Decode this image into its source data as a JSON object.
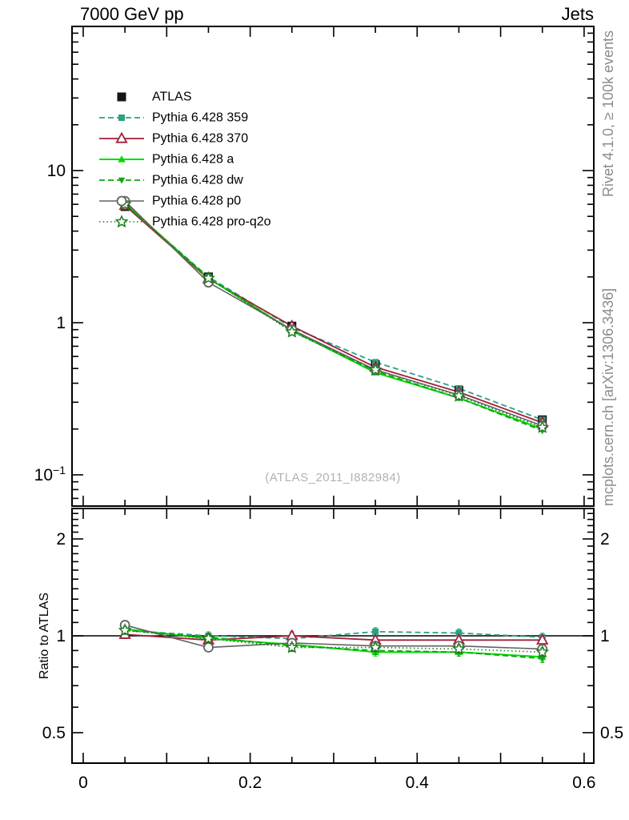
{
  "title": {
    "left": "7000 GeV pp",
    "right": "Jets"
  },
  "side_notes": {
    "top_rotated": "Rivet 4.1.0, ≥ 100k events",
    "bottom_rotated": "mcplots.cern.ch [arXiv:1306.3436]"
  },
  "watermark": "(ATLAS_2011_I882984)",
  "ratio_axis_label": "Ratio to ATLAS",
  "colors": {
    "frame": "#000000",
    "side_note": "#8c8c8c",
    "watermark": "#b2b2b2",
    "background": "#ffffff"
  },
  "chart_data": {
    "type": "line",
    "title": "7000 GeV pp — Jets",
    "xlabel": "",
    "ylabel": "",
    "ratio_ylabel": "Ratio to ATLAS",
    "x": [
      0.05,
      0.15,
      0.25,
      0.35,
      0.45,
      0.55
    ],
    "xlim": [
      -0.0134,
      0.6116
    ],
    "x_ticks": [
      {
        "v": 0,
        "t": "0"
      },
      {
        "v": 0.2,
        "t": "0.2"
      },
      {
        "v": 0.4,
        "t": "0.4"
      },
      {
        "v": 0.6,
        "t": "0.6"
      }
    ],
    "x_minor_step": 0.05,
    "grid": false,
    "legend_position": "top-left",
    "main_panel": {
      "yscale": "log",
      "ylim": [
        0.0623,
        88.6
      ],
      "y_ticks": [
        {
          "v": 10,
          "t": "10"
        },
        {
          "v": 1,
          "t": "1"
        },
        {
          "v": 0.1,
          "t": "10⁻¹"
        }
      ]
    },
    "ratio_panel": {
      "yscale": "log",
      "ylim": [
        0.402,
        2.487
      ],
      "reference": 1,
      "y_ticks": [
        {
          "v": 2,
          "t": "2"
        },
        {
          "v": 1,
          "t": "1"
        },
        {
          "v": 0.5,
          "t": "0.5"
        }
      ]
    },
    "series": [
      {
        "name": "ATLAS",
        "color": "#151515",
        "marker": "square-filled",
        "marker_size": 11,
        "line": "none",
        "width": 1.8,
        "values": [
          5.8,
          2.0,
          0.95,
          0.53,
          0.36,
          0.23
        ],
        "ratio": [
          1,
          1,
          1,
          1,
          1,
          1
        ]
      },
      {
        "name": "Pythia 6.428 359",
        "color": "#2aa183",
        "marker": "square-filled",
        "marker_size": 8,
        "line": "dashed",
        "width": 1.8,
        "values": [
          6.0,
          2.0,
          0.93,
          0.55,
          0.37,
          0.23
        ],
        "ratio": [
          1.04,
          1.0,
          0.98,
          1.03,
          1.02,
          0.99
        ]
      },
      {
        "name": "Pythia 6.428 370",
        "color": "#a02038",
        "marker": "triangle-open",
        "marker_size": 13,
        "line": "solid",
        "width": 1.8,
        "values": [
          5.9,
          1.94,
          0.95,
          0.51,
          0.35,
          0.22
        ],
        "ratio": [
          1.01,
          0.97,
          1.0,
          0.97,
          0.97,
          0.97
        ]
      },
      {
        "name": "Pythia 6.428 a",
        "color": "#00dc00",
        "marker": "triangle-filled",
        "marker_size": 10,
        "line": "solid",
        "width": 2.0,
        "values": [
          6.1,
          1.96,
          0.89,
          0.47,
          0.32,
          0.2
        ],
        "ratio": [
          1.05,
          0.98,
          0.94,
          0.89,
          0.89,
          0.86
        ]
      },
      {
        "name": "Pythia 6.428 dw",
        "color": "#12a312",
        "marker": "triangle-down-filled",
        "marker_size": 9,
        "line": "dashed",
        "width": 1.8,
        "values": [
          6.0,
          1.98,
          0.88,
          0.48,
          0.32,
          0.195
        ],
        "ratio": [
          1.04,
          0.99,
          0.93,
          0.9,
          0.89,
          0.85
        ]
      },
      {
        "name": "Pythia 6.428 p0",
        "color": "#616161",
        "marker": "circle-open",
        "marker_size": 11,
        "line": "solid",
        "width": 1.6,
        "values": [
          6.3,
          1.84,
          0.9,
          0.49,
          0.335,
          0.21
        ],
        "ratio": [
          1.08,
          0.92,
          0.95,
          0.93,
          0.93,
          0.91
        ]
      },
      {
        "name": "Pythia 6.428 pro-q2o",
        "color": "#1e7b1e",
        "marker": "star-open",
        "marker_size": 14,
        "line": "dotted",
        "width": 1.6,
        "values": [
          6.0,
          1.96,
          0.87,
          0.49,
          0.33,
          0.205
        ],
        "ratio": [
          1.04,
          0.98,
          0.92,
          0.92,
          0.91,
          0.89
        ]
      }
    ]
  }
}
